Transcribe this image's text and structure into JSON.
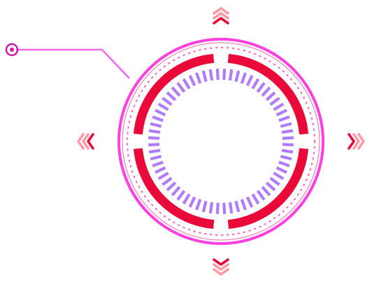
{
  "colors": {
    "outer_ring": "#ff3fe0",
    "outer_ring_inner_edge": "#e8157a",
    "dotted_ring": "#ff5fa8",
    "segment_ring": "#ea0a39",
    "tick_ring": "#b07cff",
    "arrow_dark": "#ea0a39",
    "arrow_light": "#ff9aa6",
    "connector_line": "#f268ea",
    "connector_node": "#d21aa8"
  },
  "icons": {
    "top": "chevrons-up-icon",
    "bottom": "chevrons-down-icon",
    "left": "chevrons-left-icon",
    "right": "chevrons-right-icon",
    "node": "connector-node-icon"
  }
}
